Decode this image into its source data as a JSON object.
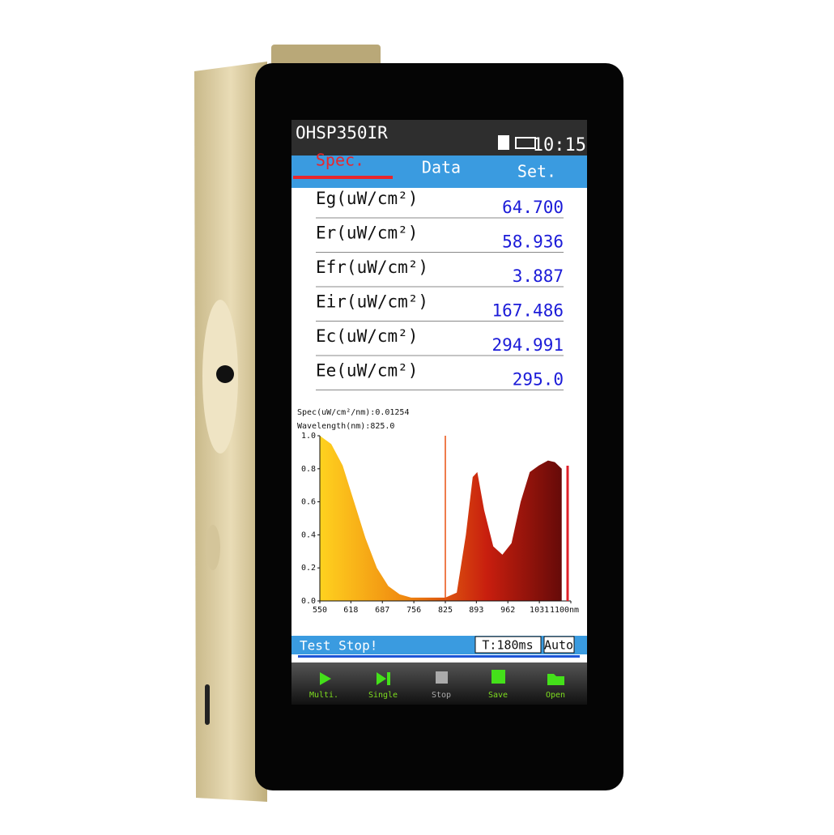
{
  "header": {
    "title": "OHSP350IR",
    "time": "10:15"
  },
  "tabs": [
    "Spec.",
    "Data",
    "Set."
  ],
  "readings": [
    {
      "label": "Eg(uW/cm²)",
      "value": "64.700"
    },
    {
      "label": "Er(uW/cm²)",
      "value": "58.936"
    },
    {
      "label": "Efr(uW/cm²)",
      "value": "3.887"
    },
    {
      "label": "Eir(uW/cm²)",
      "value": "167.486"
    },
    {
      "label": "Ec(uW/cm²)",
      "value": "294.991"
    },
    {
      "label": "Ee(uW/cm²)",
      "value": "295.0"
    }
  ],
  "spectrum": {
    "type": "area",
    "spec_caption": "Spec(uW/cm²/nm):",
    "spec_value": "0.01254",
    "cursor_caption": "Wavelength(nm):",
    "cursor": {
      "value": 825,
      "label": "825.0"
    },
    "x": [
      550,
      575,
      600,
      625,
      650,
      675,
      700,
      725,
      750,
      775,
      800,
      825,
      850,
      870,
      885,
      895,
      910,
      930,
      950,
      970,
      990,
      1010,
      1030,
      1050,
      1065,
      1080
    ],
    "values": [
      1.0,
      0.95,
      0.82,
      0.6,
      0.38,
      0.2,
      0.09,
      0.04,
      0.02,
      0.02,
      0.02,
      0.02,
      0.05,
      0.4,
      0.75,
      0.78,
      0.55,
      0.33,
      0.28,
      0.35,
      0.6,
      0.78,
      0.82,
      0.85,
      0.84,
      0.8
    ],
    "colors": [
      "#ffd21f",
      "#f08a10",
      "#c81e0e",
      "#5a0808"
    ],
    "xlim": [
      550,
      1100
    ],
    "ylim": [
      0,
      1
    ],
    "xticks": [
      550,
      618,
      687,
      756,
      825,
      893,
      962,
      1031,
      {
        "value": 1100,
        "label": "1100nm"
      }
    ],
    "yticks": [
      {
        "value": 0,
        "label": "0.0"
      },
      0.2,
      0.4,
      0.6,
      0.8,
      {
        "value": 1,
        "label": "1.0"
      }
    ]
  },
  "status": {
    "message": "Test Stop!",
    "integration": "T:180ms",
    "mode": "Auto"
  },
  "buttons": [
    "Multi.",
    "Single",
    "Stop",
    "Save",
    "Open"
  ]
}
